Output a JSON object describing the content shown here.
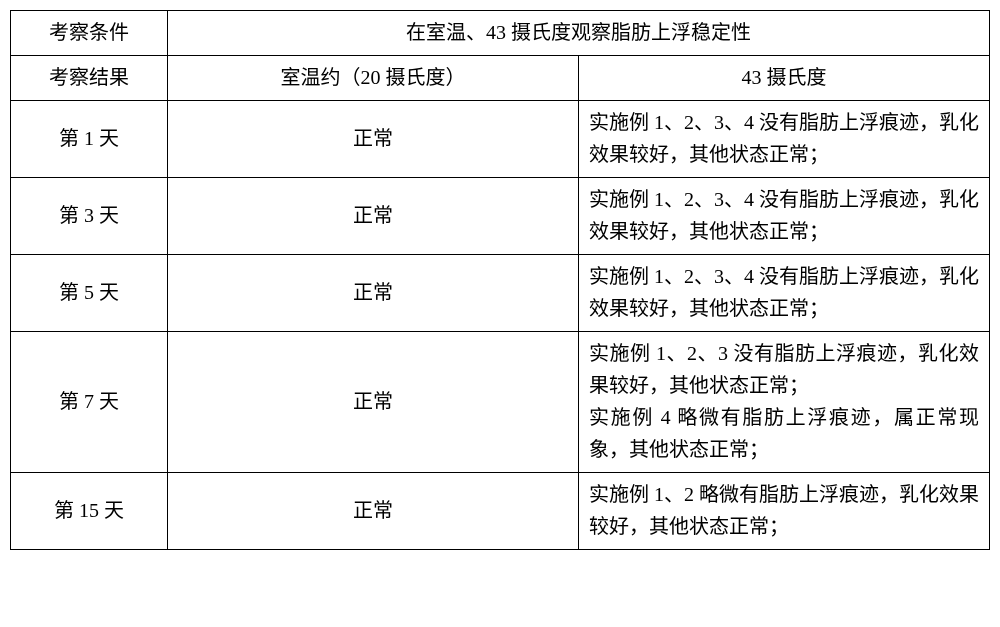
{
  "table": {
    "header": {
      "condition_label": "考察条件",
      "condition_value": "在室温、43 摄氏度观察脂肪上浮稳定性",
      "result_label": "考察结果",
      "room_temp_label": "室温约（20 摄氏度）",
      "high_temp_label": "43 摄氏度"
    },
    "rows": [
      {
        "day": "第 1 天",
        "room_temp": "正常",
        "high_temp": "实施例 1、2、3、4 没有脂肪上浮痕迹，乳化效果较好，其他状态正常；"
      },
      {
        "day": "第 3 天",
        "room_temp": "正常",
        "high_temp": "实施例 1、2、3、4 没有脂肪上浮痕迹，乳化效果较好，其他状态正常；"
      },
      {
        "day": "第 5 天",
        "room_temp": "正常",
        "high_temp": "实施例 1、2、3、4 没有脂肪上浮痕迹，乳化效果较好，其他状态正常；"
      },
      {
        "day": "第 7 天",
        "room_temp": "正常",
        "high_temp": "实施例 1、2、3 没有脂肪上浮痕迹，乳化效果较好，其他状态正常；\n实施例 4 略微有脂肪上浮痕迹，属正常现象，其他状态正常；"
      },
      {
        "day": "第 15 天",
        "room_temp": "正常",
        "high_temp": "实施例 1、2 略微有脂肪上浮痕迹，乳化效果较好，其他状态正常；"
      }
    ]
  },
  "style": {
    "font_family": "SimSun",
    "font_size_pt": 15,
    "border_color": "#000000",
    "background_color": "#ffffff",
    "text_color": "#000000"
  }
}
